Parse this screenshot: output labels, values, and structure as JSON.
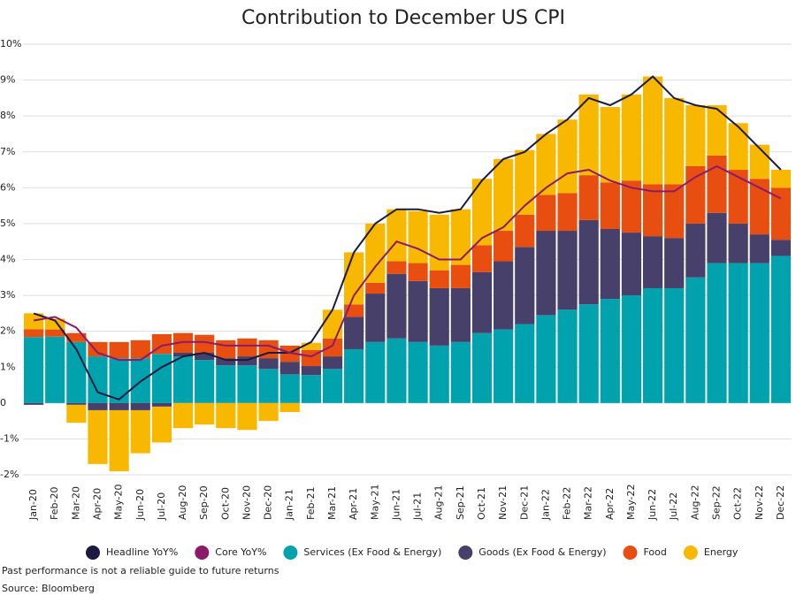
{
  "chart_data": {
    "type": "bar",
    "stacked": true,
    "grid": true,
    "title": "Contribution to December US CPI",
    "categories": [
      "Jan-20",
      "Feb-20",
      "Mar-20",
      "Apr-20",
      "May-20",
      "Jun-20",
      "Jul-20",
      "Aug-20",
      "Sep-20",
      "Oct-20",
      "Nov-20",
      "Dec-20",
      "Jan-21",
      "Feb-21",
      "Mar-21",
      "Apr-21",
      "May-21",
      "Jun-21",
      "Jul-21",
      "Aug-21",
      "Sep-21",
      "Oct-21",
      "Nov-21",
      "Dec-21",
      "Jan-22",
      "Feb-22",
      "Mar-22",
      "Apr-22",
      "May-22",
      "Jun-22",
      "Jul-22",
      "Aug-22",
      "Sep-22",
      "Oct-22",
      "Nov-22",
      "Dec-22"
    ],
    "ylim": [
      -2,
      10
    ],
    "yticks": [
      {
        "value": -2,
        "label": "-2%"
      },
      {
        "value": -1,
        "label": "-1%"
      },
      0,
      {
        "value": 1,
        "label": "1%"
      },
      {
        "value": 2,
        "label": "2%"
      },
      {
        "value": 3,
        "label": "3%"
      },
      {
        "value": 4,
        "label": "4%"
      },
      {
        "value": 5,
        "label": "5%"
      },
      {
        "value": 6,
        "label": "6%"
      },
      {
        "value": 7,
        "label": "7%"
      },
      {
        "value": 8,
        "label": "8%"
      },
      {
        "value": 9,
        "label": "9%"
      },
      {
        "value": 10,
        "label": "10%"
      }
    ],
    "series": [
      {
        "name": "Headline YoY%",
        "type": "line",
        "color": "#1b1a40",
        "values": [
          2.5,
          2.3,
          1.5,
          0.3,
          0.1,
          0.6,
          1.0,
          1.3,
          1.4,
          1.2,
          1.2,
          1.4,
          1.4,
          1.7,
          2.6,
          4.2,
          5.0,
          5.4,
          5.4,
          5.3,
          5.4,
          6.2,
          6.8,
          7.0,
          7.5,
          7.9,
          8.5,
          8.3,
          8.6,
          9.1,
          8.5,
          8.3,
          8.2,
          7.7,
          7.1,
          6.5
        ]
      },
      {
        "name": "Core YoY%",
        "type": "line",
        "color": "#8c1a6a",
        "values": [
          2.3,
          2.4,
          2.1,
          1.4,
          1.2,
          1.2,
          1.6,
          1.7,
          1.7,
          1.6,
          1.6,
          1.6,
          1.4,
          1.3,
          1.6,
          3.0,
          3.8,
          4.5,
          4.3,
          4.0,
          4.0,
          4.6,
          4.9,
          5.5,
          6.0,
          6.4,
          6.5,
          6.2,
          6.0,
          5.9,
          5.9,
          6.3,
          6.6,
          6.3,
          6.0,
          5.7
        ]
      },
      {
        "name": "Services (Ex Food & Energy)",
        "type": "bar",
        "color": "#00a3ad",
        "values": [
          1.84,
          1.85,
          1.7,
          1.3,
          1.25,
          1.25,
          1.37,
          1.3,
          1.2,
          1.05,
          1.05,
          0.95,
          0.8,
          0.78,
          0.95,
          1.5,
          1.7,
          1.8,
          1.7,
          1.6,
          1.7,
          1.95,
          2.05,
          2.2,
          2.45,
          2.6,
          2.75,
          2.9,
          3.0,
          3.2,
          3.2,
          3.5,
          3.9,
          3.9,
          3.9,
          4.1
        ]
      },
      {
        "name": "Goods (Ex Food & Energy)",
        "type": "bar",
        "color": "#46406b",
        "values": [
          -0.05,
          0,
          -0.05,
          -0.2,
          -0.2,
          -0.2,
          -0.1,
          0.1,
          0.2,
          0.2,
          0.25,
          0.3,
          0.35,
          0.25,
          0.35,
          0.9,
          1.35,
          1.8,
          1.7,
          1.6,
          1.5,
          1.7,
          1.9,
          2.15,
          2.35,
          2.2,
          2.35,
          1.95,
          1.75,
          1.45,
          1.4,
          1.5,
          1.4,
          1.1,
          0.8,
          0.45
        ]
      },
      {
        "name": "Food",
        "type": "bar",
        "color": "#e84e10",
        "values": [
          0.22,
          0.2,
          0.25,
          0.4,
          0.45,
          0.5,
          0.55,
          0.55,
          0.5,
          0.5,
          0.5,
          0.5,
          0.45,
          0.45,
          0.5,
          0.35,
          0.3,
          0.35,
          0.5,
          0.5,
          0.65,
          0.75,
          0.85,
          0.9,
          1.0,
          1.05,
          1.25,
          1.3,
          1.45,
          1.45,
          1.5,
          1.6,
          1.6,
          1.5,
          1.55,
          1.45
        ]
      },
      {
        "name": "Energy",
        "type": "bar",
        "color": "#f8b800",
        "values": [
          0.44,
          0.3,
          -0.5,
          -1.5,
          -1.7,
          -1.2,
          -1.0,
          -0.7,
          -0.6,
          -0.7,
          -0.75,
          -0.5,
          -0.25,
          0.2,
          0.8,
          1.45,
          1.65,
          1.45,
          1.45,
          1.55,
          1.55,
          1.85,
          2.0,
          1.8,
          1.7,
          2.05,
          2.25,
          2.1,
          2.4,
          3.0,
          2.4,
          1.7,
          1.4,
          1.3,
          0.95,
          0.5
        ]
      }
    ],
    "notes": [
      "Past performance is not a reliable guide to future returns",
      "Source: Bloomberg"
    ]
  }
}
